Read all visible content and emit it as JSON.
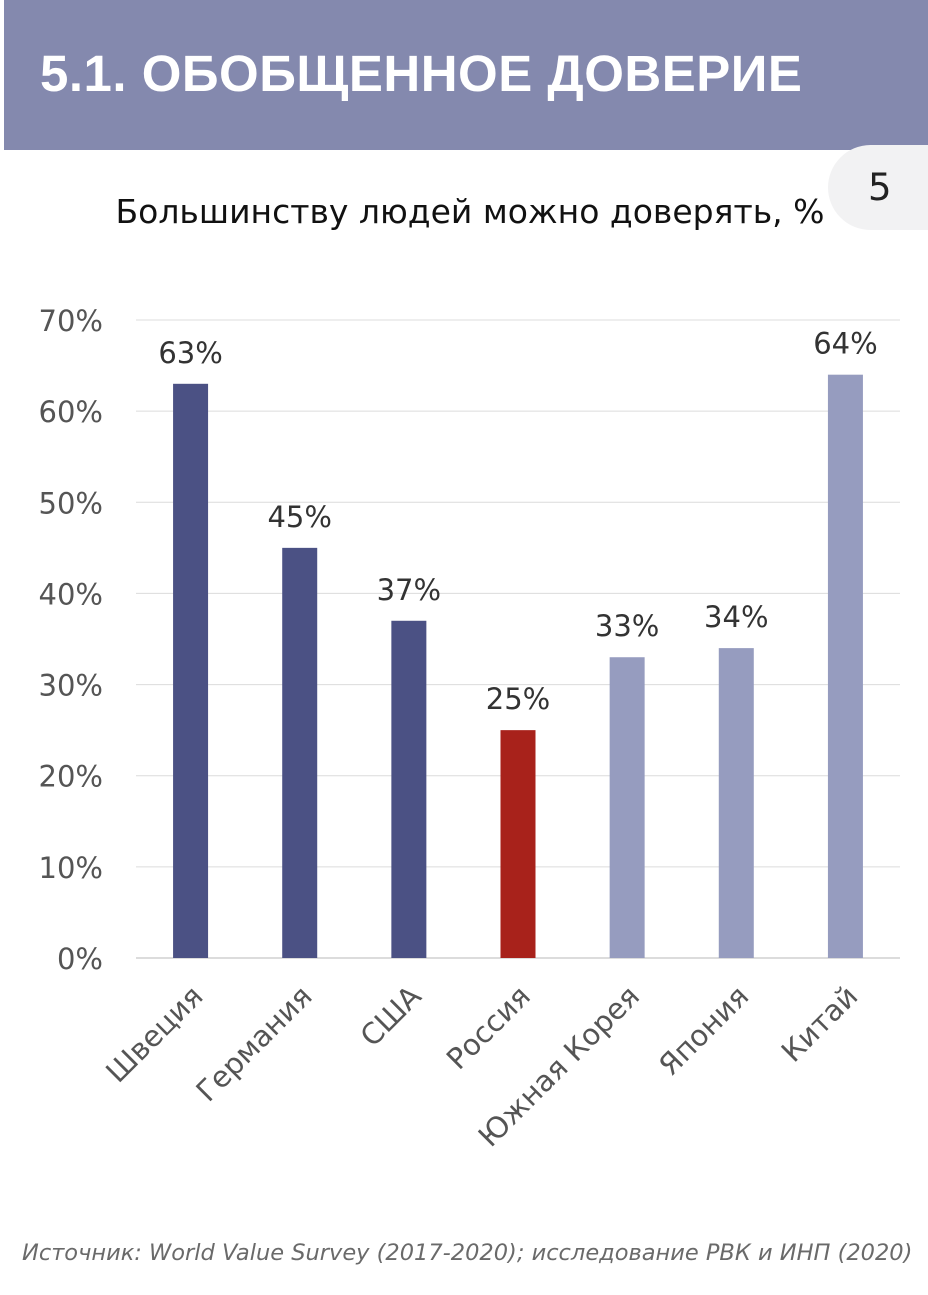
{
  "header": {
    "title": "5.1. ОБОБЩЕННОЕ ДОВЕРИЕ",
    "page_number": "5"
  },
  "colors": {
    "header_bg": "#8489ae",
    "bar_dark": "#4b5184",
    "bar_light": "#969cbf",
    "bar_highlight": "#a8221b"
  },
  "chart_data": {
    "type": "bar",
    "title": "Большинству людей можно доверять, %",
    "categories": [
      "Швеция",
      "Германия",
      "США",
      "Россия",
      "Южная Корея",
      "Япония",
      "Китай"
    ],
    "values": [
      63,
      45,
      37,
      25,
      33,
      34,
      64
    ],
    "value_labels": [
      "63%",
      "45%",
      "37%",
      "25%",
      "33%",
      "34%",
      "64%"
    ],
    "bar_colors": [
      "#4b5184",
      "#4b5184",
      "#4b5184",
      "#a8221b",
      "#969cbf",
      "#969cbf",
      "#969cbf"
    ],
    "ylim": [
      0,
      70
    ],
    "yticks": [
      0,
      10,
      20,
      30,
      40,
      50,
      60,
      70
    ],
    "ytick_labels": [
      "0%",
      "10%",
      "20%",
      "30%",
      "40%",
      "50%",
      "60%",
      "70%"
    ],
    "xlabel": "",
    "ylabel": "",
    "grid": true,
    "legend": "none"
  },
  "source": "Источник: World Value Survey (2017-2020); исследование РВК и ИНП (2020)"
}
